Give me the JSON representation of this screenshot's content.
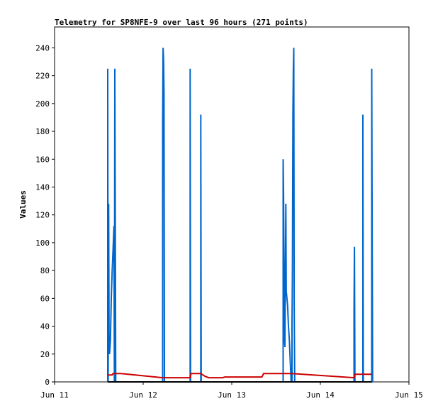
{
  "chart_data": {
    "type": "line",
    "title": "Telemetry for SP8NFE-9 over last 96 hours (271 points)",
    "ylabel": "Values",
    "xlabel": "",
    "ylim": [
      0,
      255
    ],
    "xlim": [
      0,
      4
    ],
    "yticks": [
      0,
      20,
      40,
      60,
      80,
      100,
      120,
      140,
      160,
      180,
      200,
      220,
      240
    ],
    "xticks": [
      {
        "x": 0,
        "label": "Jun 11"
      },
      {
        "x": 1,
        "label": "Jun 12"
      },
      {
        "x": 2,
        "label": "Jun 13"
      },
      {
        "x": 3,
        "label": "Jun 14"
      },
      {
        "x": 4,
        "label": "Jun 15"
      }
    ],
    "grid": false,
    "series": [
      {
        "color": "#0066cc",
        "points": [
          [
            0.6,
            0
          ],
          [
            0.6,
            225
          ],
          [
            0.605,
            0
          ],
          [
            0.61,
            128
          ],
          [
            0.615,
            30
          ],
          [
            0.62,
            20
          ],
          [
            0.63,
            30
          ],
          [
            0.64,
            60
          ],
          [
            0.65,
            80
          ],
          [
            0.66,
            95
          ],
          [
            0.67,
            112
          ],
          [
            0.675,
            0
          ],
          [
            0.68,
            225
          ],
          [
            0.685,
            128
          ],
          [
            0.69,
            0
          ],
          [
            1.22,
            0
          ],
          [
            1.22,
            185
          ],
          [
            1.225,
            240
          ],
          [
            1.23,
            232
          ],
          [
            1.235,
            208
          ],
          [
            1.24,
            0
          ],
          [
            1.53,
            0
          ],
          [
            1.53,
            225
          ],
          [
            1.535,
            0
          ],
          [
            1.65,
            0
          ],
          [
            1.65,
            192
          ],
          [
            1.655,
            0
          ],
          [
            2.58,
            0
          ],
          [
            2.58,
            160
          ],
          [
            2.585,
            134
          ],
          [
            2.59,
            80
          ],
          [
            2.595,
            30
          ],
          [
            2.6,
            25
          ],
          [
            2.61,
            128
          ],
          [
            2.615,
            65
          ],
          [
            2.62,
            62
          ],
          [
            2.63,
            55
          ],
          [
            2.64,
            40
          ],
          [
            2.65,
            30
          ],
          [
            2.66,
            15
          ],
          [
            2.67,
            0
          ],
          [
            2.68,
            0
          ],
          [
            2.68,
            40
          ],
          [
            2.685,
            80
          ],
          [
            2.69,
            193
          ],
          [
            2.695,
            225
          ],
          [
            2.7,
            240
          ],
          [
            2.705,
            57
          ],
          [
            2.71,
            0
          ],
          [
            3.38,
            0
          ],
          [
            3.38,
            50
          ],
          [
            3.385,
            97
          ],
          [
            3.39,
            0
          ],
          [
            3.48,
            0
          ],
          [
            3.48,
            192
          ],
          [
            3.485,
            0
          ],
          [
            3.58,
            0
          ],
          [
            3.58,
            225
          ],
          [
            3.585,
            112
          ],
          [
            3.59,
            0
          ]
        ]
      },
      {
        "color": "#cc0000",
        "points": [
          [
            0.6,
            5
          ],
          [
            0.65,
            5
          ],
          [
            0.66,
            6
          ],
          [
            0.75,
            6
          ],
          [
            1.22,
            3
          ],
          [
            1.53,
            3
          ],
          [
            1.54,
            6
          ],
          [
            1.65,
            6
          ],
          [
            1.7,
            4
          ],
          [
            1.74,
            3
          ],
          [
            1.9,
            3
          ],
          [
            1.92,
            3.5
          ],
          [
            2.34,
            3.5
          ],
          [
            2.36,
            6
          ],
          [
            2.58,
            6
          ],
          [
            2.68,
            6
          ],
          [
            3.38,
            3
          ],
          [
            3.39,
            5.5
          ],
          [
            3.58,
            5.5
          ]
        ]
      },
      {
        "color": "#000000",
        "points": [
          [
            0.6,
            0
          ],
          [
            3.58,
            0
          ]
        ]
      }
    ]
  }
}
